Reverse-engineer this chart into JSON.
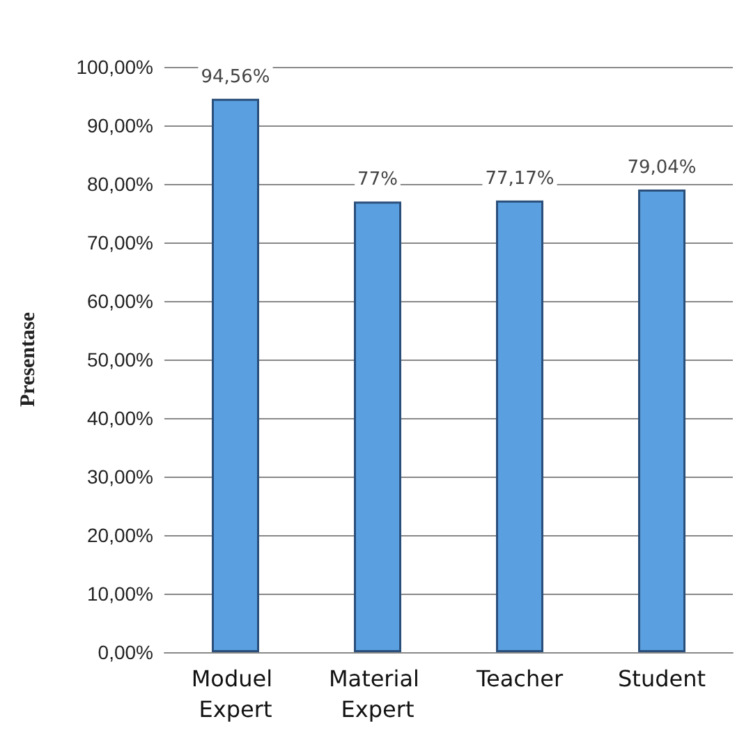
{
  "chart_data": {
    "type": "bar",
    "ylabel": "Presentase",
    "categories": [
      "Moduel Expert",
      "Material Expert",
      "Teacher",
      "Student"
    ],
    "values": [
      94.56,
      77,
      77.17,
      79.04
    ],
    "color": "#5a9fe0",
    "value_labels": [
      "94,56%",
      "77%",
      "77,17%",
      "79,04%"
    ],
    "ylim": [
      0,
      100
    ],
    "yticks": [
      {
        "value": 0,
        "label": "0,00%"
      },
      {
        "value": 10,
        "label": "10,00%"
      },
      {
        "value": 20,
        "label": "20,00%"
      },
      {
        "value": 30,
        "label": "30,00%"
      },
      {
        "value": 40,
        "label": "40,00%"
      },
      {
        "value": 50,
        "label": "50,00%"
      },
      {
        "value": 60,
        "label": "60,00%"
      },
      {
        "value": 70,
        "label": "70,00%"
      },
      {
        "value": 80,
        "label": "80,00%"
      },
      {
        "value": 90,
        "label": "90,00%"
      },
      {
        "value": 100,
        "label": "100,00%"
      }
    ],
    "grid": "y"
  }
}
